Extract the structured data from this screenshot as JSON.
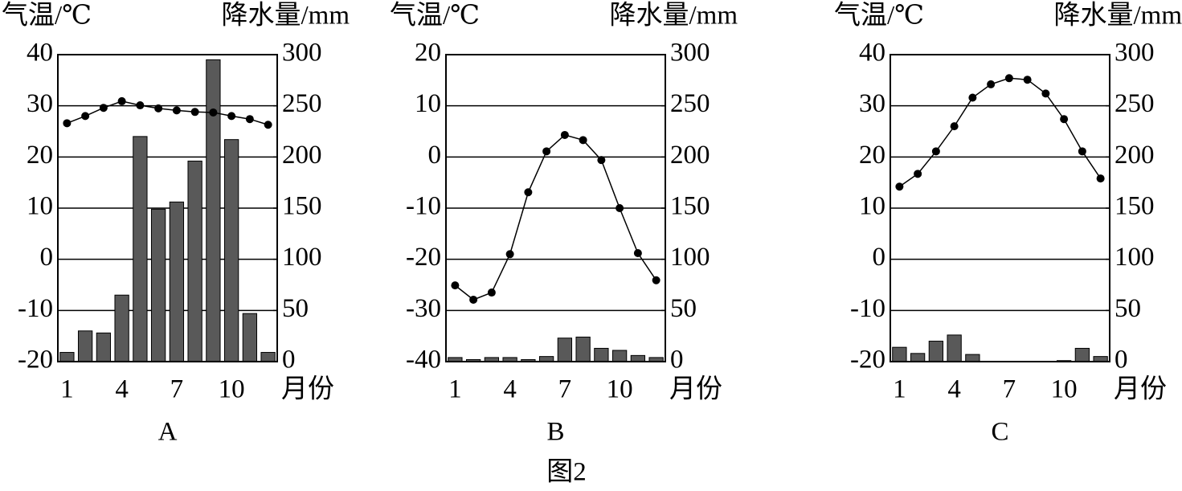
{
  "figure_caption": "图2",
  "chart_data": [
    {
      "type": "combo",
      "caption": "A",
      "y_label": "气温/℃",
      "y2_label": "降水量/mm",
      "x_label": "月份",
      "categories": [
        "1",
        null,
        null,
        "4",
        null,
        null,
        "7",
        null,
        null,
        "10",
        null,
        null
      ],
      "series": [
        {
          "kind": "bar",
          "axis": "y2",
          "color": "#595959",
          "values": [
            9,
            30,
            28,
            65,
            220,
            149,
            156,
            196,
            295,
            217,
            47,
            9
          ]
        },
        {
          "kind": "line",
          "axis": "y",
          "color": "#000000",
          "values": [
            26.6,
            28.0,
            29.6,
            30.9,
            30.1,
            29.5,
            29.1,
            28.8,
            28.7,
            28.0,
            27.4,
            26.3
          ]
        }
      ],
      "ylim": [
        -20,
        40
      ],
      "yticks": [
        -20,
        -10,
        0,
        10,
        20,
        30,
        40
      ],
      "y2lim": [
        0,
        300
      ],
      "y2ticks": [
        0,
        50,
        100,
        150,
        200,
        250,
        300
      ],
      "grid": true
    },
    {
      "type": "combo",
      "caption": "B",
      "y_label": "气温/℃",
      "y2_label": "降水量/mm",
      "x_label": "月份",
      "categories": [
        "1",
        null,
        null,
        "4",
        null,
        null,
        "7",
        null,
        null,
        "10",
        null,
        null
      ],
      "series": [
        {
          "kind": "bar",
          "axis": "y2",
          "color": "#595959",
          "values": [
            4,
            2,
            4,
            4,
            2,
            5,
            23,
            24,
            13,
            11,
            6,
            4
          ]
        },
        {
          "kind": "line",
          "axis": "y",
          "color": "#000000",
          "values": [
            -25.1,
            -27.9,
            -26.5,
            -19.0,
            -6.9,
            1.1,
            4.3,
            3.3,
            -0.6,
            -10,
            -18.8,
            -24.1
          ]
        }
      ],
      "ylim": [
        -40,
        20
      ],
      "yticks": [
        -40,
        -30,
        -20,
        -10,
        0,
        10,
        20
      ],
      "y2lim": [
        0,
        300
      ],
      "y2ticks": [
        0,
        50,
        100,
        150,
        200,
        250,
        300
      ],
      "grid": true
    },
    {
      "type": "combo",
      "caption": "C",
      "y_label": "气温/℃",
      "y2_label": "降水量/mm",
      "x_label": "月份",
      "categories": [
        "1",
        null,
        null,
        "4",
        null,
        null,
        "7",
        null,
        null,
        "10",
        null,
        null
      ],
      "series": [
        {
          "kind": "bar",
          "axis": "y2",
          "color": "#595959",
          "values": [
            14,
            8,
            20,
            26,
            7,
            0,
            0,
            0,
            0,
            1,
            13,
            5
          ]
        },
        {
          "kind": "line",
          "axis": "y",
          "color": "#000000",
          "values": [
            14.2,
            16.7,
            21.1,
            26.0,
            31.6,
            34.2,
            35.4,
            35.1,
            32.4,
            27.4,
            21.1,
            15.8
          ]
        }
      ],
      "ylim": [
        -20,
        40
      ],
      "yticks": [
        -20,
        -10,
        0,
        10,
        20,
        30,
        40
      ],
      "y2lim": [
        0,
        300
      ],
      "y2ticks": [
        0,
        50,
        100,
        150,
        200,
        250,
        300
      ],
      "grid": true
    }
  ]
}
